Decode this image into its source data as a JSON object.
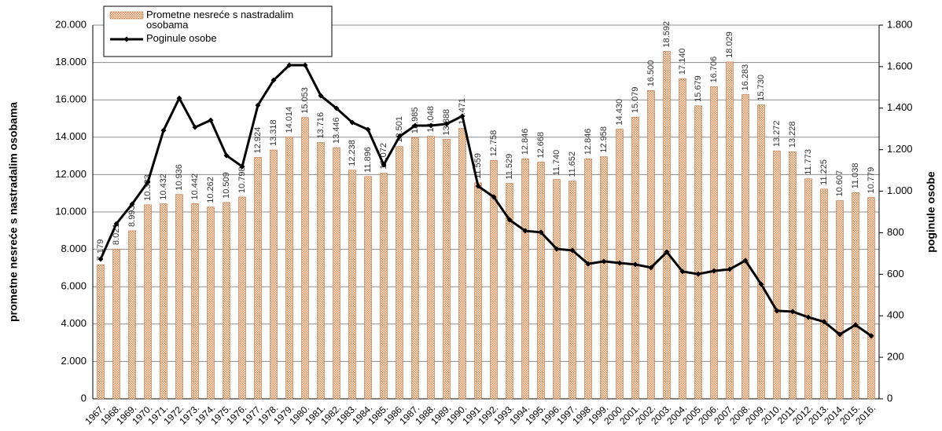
{
  "chart_data": {
    "type": "bar",
    "categories": [
      "1967.",
      "1968.",
      "1969.",
      "1970.",
      "1971.",
      "1972.",
      "1973.",
      "1974.",
      "1975.",
      "1976.",
      "1977.",
      "1978.",
      "1979.",
      "1980.",
      "1981.",
      "1982.",
      "1983.",
      "1984.",
      "1985.",
      "1986.",
      "1987.",
      "1988.",
      "1989.",
      "1990.",
      "1991.",
      "1992.",
      "1993.",
      "1994.",
      "1995.",
      "1996.",
      "1997.",
      "1998.",
      "1999.",
      "2000.",
      "2001.",
      "2002.",
      "2003.",
      "2004.",
      "2005.",
      "2006.",
      "2007.",
      "2008.",
      "2009.",
      "2010.",
      "2011.",
      "2012.",
      "2013.",
      "2014.",
      "2015.",
      "2016."
    ],
    "series": [
      {
        "name": "Prometne nesreće s nastradalim osobama",
        "color": "#e07b39",
        "values": [
          7179,
          8021,
          8993,
          10383,
          10432,
          10936,
          10442,
          10262,
          10509,
          10798,
          12924,
          13318,
          14014,
          15053,
          13716,
          13446,
          12238,
          11896,
          12072,
          13501,
          13985,
          14048,
          13888,
          14471,
          11559,
          12758,
          11529,
          12846,
          12668,
          11740,
          11652,
          12846,
          12958,
          14430,
          15079,
          16500,
          18592,
          17140,
          15679,
          16706,
          18029,
          16283,
          15730,
          13272,
          13228,
          11773,
          11225,
          10607,
          11038,
          10779
        ],
        "value_labels": [
          "7.179",
          "8.021",
          "8.993",
          "10.383",
          "10.432",
          "10.936",
          "10.442",
          "10.262",
          "10.509",
          "10.798",
          "12.924",
          "13.318",
          "14.014",
          "15.053",
          "13.716",
          "13.446",
          "12.238",
          "11.896",
          "12.072",
          "13.501",
          "13.985",
          "14.048",
          "13.888",
          "14.471",
          "11.559",
          "12.758",
          "11.529",
          "12.846",
          "12.668",
          "11.740",
          "11.652",
          "12.846",
          "12.958",
          "14.430",
          "15.079",
          "16.500",
          "18.592",
          "17.140",
          "15.679",
          "16.706",
          "18.029",
          "16.283",
          "15.730",
          "13.272",
          "13.228",
          "11.773",
          "11.225",
          "10.607",
          "11.038",
          "10.779"
        ]
      },
      {
        "name": "Poginule osobe",
        "color": "#000000",
        "type": "line",
        "axis": "y2",
        "values": [
          673,
          843,
          938,
          1044,
          1293,
          1448,
          1308,
          1342,
          1172,
          1119,
          1414,
          1535,
          1607,
          1607,
          1460,
          1399,
          1331,
          1297,
          1127,
          1263,
          1316,
          1316,
          1324,
          1362,
          1025,
          972,
          862,
          809,
          802,
          722,
          715,
          650,
          662,
          654,
          647,
          632,
          707,
          613,
          601,
          616,
          624,
          666,
          552,
          424,
          420,
          393,
          371,
          310,
          356,
          303
        ]
      }
    ],
    "y_label": "prometne nesreće s nastradalim osobama",
    "y2_label": "poginule osobe",
    "ylim": [
      0,
      20000
    ],
    "yticks": [
      0,
      {
        "value": 2000,
        "label": "2.000"
      },
      {
        "value": 4000,
        "label": "4.000"
      },
      {
        "value": 6000,
        "label": "6.000"
      },
      {
        "value": 8000,
        "label": "8.000"
      },
      {
        "value": 10000,
        "label": "10.000"
      },
      {
        "value": 12000,
        "label": "12.000"
      },
      {
        "value": 14000,
        "label": "14.000"
      },
      {
        "value": 16000,
        "label": "16.000"
      },
      {
        "value": 18000,
        "label": "18.000"
      },
      {
        "value": 20000,
        "label": "20.000"
      }
    ],
    "y2lim": [
      0,
      1800
    ],
    "y2ticks": [
      0,
      200,
      400,
      600,
      800,
      {
        "value": 1000,
        "label": "1.000"
      },
      {
        "value": 1200,
        "label": "1.200"
      },
      {
        "value": 1400,
        "label": "1.400"
      },
      {
        "value": 1600,
        "label": "1.600"
      },
      {
        "value": 1800,
        "label": "1.800"
      }
    ],
    "grid": true,
    "legend": "top-left"
  }
}
